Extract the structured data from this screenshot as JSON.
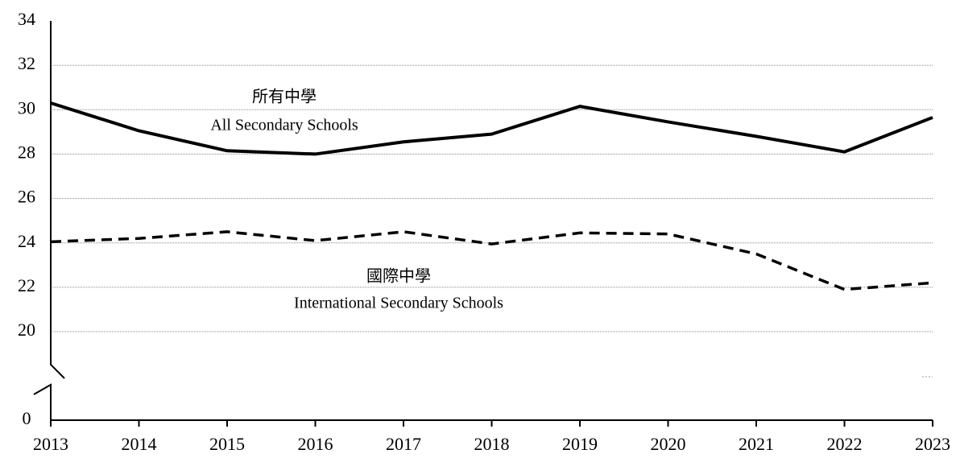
{
  "chart_data": {
    "type": "line",
    "categories": [
      "2013",
      "2014",
      "2015",
      "2016",
      "2017",
      "2018",
      "2019",
      "2020",
      "2021",
      "2022",
      "2023"
    ],
    "series": [
      {
        "name": "All Secondary Schools",
        "name_zh": "所有中學",
        "color": "#000000",
        "dash": false,
        "values": [
          30.3,
          29.05,
          28.15,
          28.0,
          28.55,
          28.9,
          30.15,
          29.45,
          28.8,
          28.1,
          29.65
        ]
      },
      {
        "name": "International Secondary Schools",
        "name_zh": "國際中學",
        "color": "#000000",
        "dash": true,
        "values": [
          24.05,
          24.2,
          24.5,
          24.1,
          24.5,
          23.95,
          24.45,
          24.4,
          23.5,
          21.9,
          22.2
        ]
      }
    ],
    "ylim": [
      0,
      34
    ],
    "y_break": [
      0,
      20
    ],
    "yticks": [
      0,
      20,
      22,
      24,
      26,
      28,
      30,
      32,
      34
    ],
    "grid": true
  }
}
